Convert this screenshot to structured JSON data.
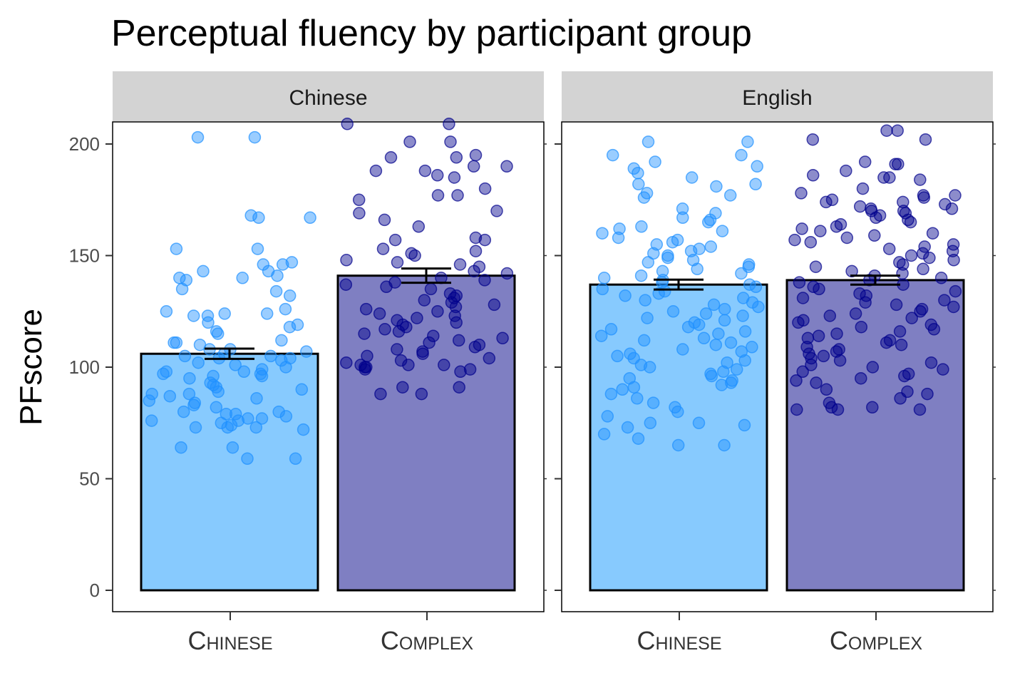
{
  "chart_data": {
    "type": "bar",
    "title": "Perceptual fluency by participant group",
    "ylabel": "PFscore",
    "xlabel": "",
    "ylim": [
      0,
      210
    ],
    "yticks": [
      0,
      50,
      100,
      150,
      200
    ],
    "grid": false,
    "legend": "none",
    "categories": [
      "Chinese",
      "Complex"
    ],
    "colors": {
      "Chinese": "#87CAFE",
      "Complex": "#7F7FC2",
      "point_Chinese": "#1E90FF",
      "point_Complex": "#00008B",
      "strip": "#D3D3D3"
    },
    "panels": [
      {
        "name": "Chinese",
        "bars": [
          {
            "category": "Chinese",
            "mean": 106,
            "se": 2.3
          },
          {
            "category": "Complex",
            "mean": 141,
            "se": 3.2
          }
        ],
        "points": {
          "Chinese": [
            203,
            203,
            168,
            167,
            167,
            153,
            153,
            147,
            146,
            146,
            143,
            143,
            141,
            140,
            140,
            139,
            135,
            134,
            132,
            126,
            125,
            124,
            124,
            123,
            123,
            120,
            119,
            118,
            116,
            115,
            112,
            111,
            111,
            110,
            108,
            108,
            107,
            106,
            105,
            105,
            104,
            104,
            103,
            102,
            101,
            100,
            99,
            98,
            98,
            97,
            97,
            96,
            96,
            95,
            93,
            92,
            91,
            90,
            89,
            88,
            88,
            87,
            86,
            85,
            84,
            83,
            82,
            80,
            80,
            79,
            79,
            78,
            77,
            77,
            76,
            76,
            75,
            74,
            73,
            73,
            73,
            72,
            64,
            64,
            59,
            59
          ],
          "Complex": [
            209,
            209,
            201,
            201,
            195,
            194,
            194,
            190,
            190,
            188,
            188,
            186,
            185,
            180,
            177,
            177,
            175,
            170,
            169,
            166,
            163,
            158,
            157,
            157,
            153,
            152,
            151,
            150,
            148,
            147,
            146,
            145,
            143,
            142,
            140,
            139,
            138,
            137,
            136,
            135,
            133,
            132,
            131,
            130,
            129,
            128,
            127,
            126,
            125,
            124,
            123,
            122,
            121,
            120,
            119,
            118,
            117,
            116,
            115,
            114,
            113,
            112,
            111,
            110,
            109,
            108,
            107,
            106,
            105,
            104,
            103,
            102,
            101,
            101,
            101,
            100,
            100,
            99,
            99,
            98,
            91,
            91,
            88,
            88
          ]
        }
      },
      {
        "name": "English",
        "bars": [
          {
            "category": "Chinese",
            "mean": 137,
            "se": 2.2
          },
          {
            "category": "Complex",
            "mean": 139,
            "se": 2.0
          }
        ],
        "points": {
          "Chinese": [
            201,
            201,
            195,
            195,
            192,
            190,
            189,
            187,
            185,
            182,
            182,
            181,
            178,
            177,
            176,
            171,
            169,
            167,
            166,
            165,
            163,
            162,
            161,
            160,
            158,
            157,
            156,
            155,
            154,
            153,
            152,
            151,
            150,
            149,
            148,
            147,
            146,
            145,
            144,
            143,
            142,
            141,
            140,
            139,
            138,
            137,
            136,
            135,
            134,
            133,
            132,
            131,
            130,
            129,
            128,
            127,
            126,
            125,
            124,
            123,
            122,
            121,
            120,
            119,
            118,
            117,
            116,
            115,
            114,
            113,
            112,
            111,
            110,
            109,
            108,
            107,
            106,
            105,
            104,
            103,
            102,
            101,
            100,
            99,
            98,
            97,
            96,
            95,
            94,
            93,
            92,
            91,
            90,
            88,
            86,
            84,
            82,
            80,
            78,
            75,
            75,
            74,
            73,
            70,
            68,
            65,
            65
          ],
          "Complex": [
            206,
            206,
            202,
            202,
            192,
            191,
            191,
            188,
            186,
            185,
            185,
            184,
            180,
            178,
            177,
            177,
            176,
            175,
            174,
            174,
            173,
            172,
            171,
            171,
            170,
            170,
            169,
            168,
            167,
            166,
            165,
            164,
            163,
            162,
            161,
            160,
            159,
            158,
            157,
            156,
            155,
            154,
            153,
            152,
            151,
            150,
            149,
            148,
            147,
            146,
            145,
            144,
            143,
            142,
            141,
            140,
            139,
            138,
            137,
            136,
            135,
            134,
            133,
            132,
            131,
            130,
            129,
            128,
            127,
            126,
            125,
            124,
            123,
            122,
            121,
            120,
            119,
            118,
            117,
            116,
            115,
            114,
            113,
            112,
            111,
            110,
            109,
            108,
            107,
            106,
            105,
            104,
            103,
            102,
            101,
            100,
            99,
            98,
            97,
            96,
            95,
            94,
            93,
            90,
            89,
            88,
            86,
            84,
            82,
            82,
            81,
            81,
            81
          ]
        }
      }
    ]
  }
}
